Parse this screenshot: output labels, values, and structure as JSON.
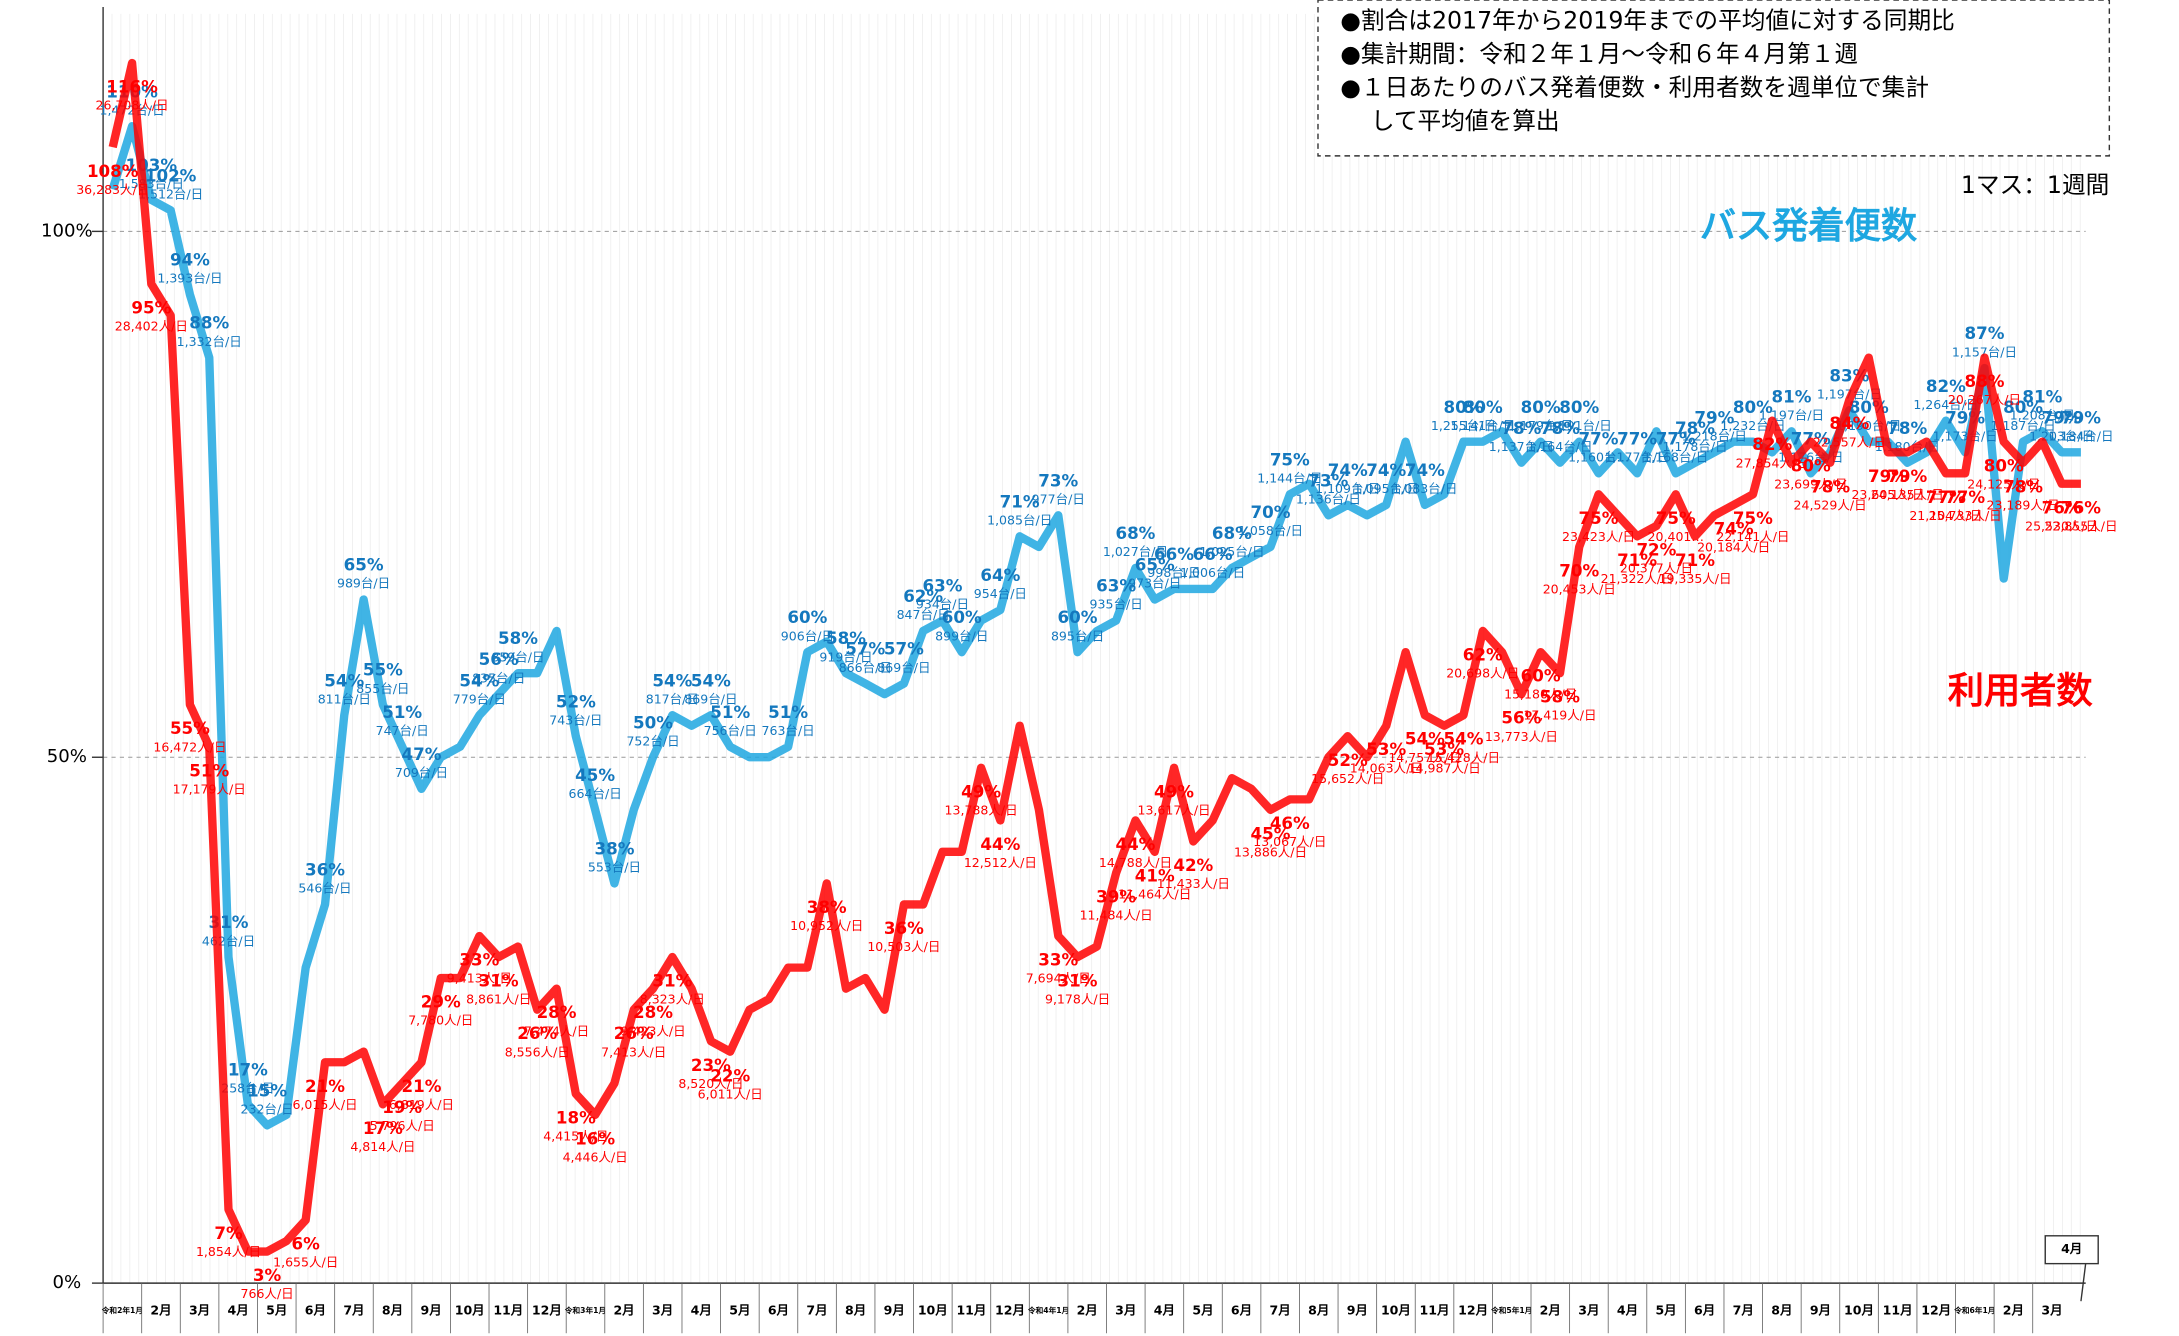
{
  "chart_data": {
    "type": "line",
    "info_box": [
      "●割合は2017年から2019年までの平均値に対する同期比",
      "●集計期間：令和２年１月～令和６年４月第１週",
      "●１日あたりのバス発着便数・利用者数を週単位で集計",
      "して平均値を算出"
    ],
    "scale_note": "1マス：1週間",
    "categories": [
      "令和2年1月",
      null,
      "2月",
      null,
      "3月",
      null,
      "4月",
      null,
      "5月",
      null,
      "6月",
      null,
      "7月",
      null,
      "8月",
      null,
      "9月",
      null,
      "10月",
      null,
      "11月",
      null,
      "12月",
      null,
      "令和3年1月",
      null,
      "2月",
      null,
      "3月",
      null,
      "4月",
      null,
      "5月",
      null,
      "6月",
      null,
      "7月",
      null,
      "8月",
      null,
      "9月",
      null,
      "10月",
      null,
      "11月",
      null,
      "12月",
      null,
      "令和4年1月",
      null,
      "2月",
      null,
      "3月",
      null,
      "4月",
      null,
      "5月",
      null,
      "6月",
      null,
      "7月",
      null,
      "8月",
      null,
      "9月",
      null,
      "10月",
      null,
      "11月",
      null,
      "12月",
      null,
      "令和5年1月",
      null,
      "2月",
      null,
      "3月",
      null,
      "4月",
      null,
      "5月",
      null,
      "6月",
      null,
      "7月",
      null,
      "8月",
      null,
      "9月",
      null,
      "10月",
      null,
      "11月",
      null,
      "12月",
      null,
      "令和6年1月",
      null,
      "2月",
      null,
      "3月",
      null,
      "4月"
    ],
    "ylim": [
      0,
      122
    ],
    "yticks": [
      {
        "value": 0,
        "label": "0%"
      },
      {
        "value": 50,
        "label": "50%"
      },
      {
        "value": 100,
        "label": "100%"
      }
    ],
    "grid": true,
    "series": [
      {
        "name": "バス発着便数",
        "color": "#1ea7e1",
        "label_color": "#1478be",
        "values": [
          104,
          110,
          103,
          102,
          94,
          88,
          31,
          17,
          15,
          16,
          30,
          36,
          54,
          65,
          55,
          51,
          47,
          50,
          51,
          54,
          56,
          58,
          58,
          62,
          52,
          45,
          38,
          45,
          50,
          54,
          53,
          54,
          51,
          50,
          50,
          51,
          60,
          61,
          58,
          57,
          56,
          57,
          62,
          63,
          60,
          63,
          64,
          71,
          70,
          73,
          60,
          62,
          63,
          68,
          65,
          66,
          66,
          66,
          68,
          69,
          70,
          75,
          76,
          73,
          74,
          73,
          74,
          80,
          74,
          75,
          80,
          80,
          81,
          78,
          80,
          78,
          80,
          77,
          79,
          77,
          81,
          77,
          78,
          79,
          80,
          80,
          79,
          81,
          77,
          79,
          83,
          80,
          80,
          78,
          79,
          82,
          79,
          87,
          67,
          80,
          81,
          79,
          79
        ],
        "value_labels": [
          null,
          "110%",
          "103%",
          "102%",
          "94%",
          "88%",
          "31%",
          "17%",
          "15%",
          null,
          null,
          "36%",
          "54%",
          "65%",
          "55%",
          "51%",
          "47%",
          null,
          null,
          "54%",
          "56%",
          "58%",
          null,
          null,
          "52%",
          "45%",
          "38%",
          null,
          "50%",
          "54%",
          null,
          "54%",
          "51%",
          null,
          null,
          "51%",
          "60%",
          null,
          "58%",
          "57%",
          null,
          "57%",
          "62%",
          "63%",
          "60%",
          null,
          "64%",
          "71%",
          null,
          "73%",
          "60%",
          null,
          "63%",
          "68%",
          "65%",
          "66%",
          null,
          "66%",
          "68%",
          null,
          "70%",
          "75%",
          null,
          "73%",
          "74%",
          null,
          "74%",
          null,
          "74%",
          null,
          "80%",
          "80%",
          null,
          "78%",
          "80%",
          "78%",
          "80%",
          "77%",
          null,
          "77%",
          null,
          "77%",
          "78%",
          "79%",
          null,
          "80%",
          null,
          "81%",
          "77%",
          null,
          "83%",
          "80%",
          null,
          "78%",
          null,
          "82%",
          "79%",
          "87%",
          null,
          "80%",
          "81%",
          "79%",
          "79%"
        ],
        "count_labels": [
          null,
          "1,472台/日",
          "1,583台/日",
          "1,512台/日",
          "1,393台/日",
          "1,332台/日",
          "462台/日",
          "258台/日",
          "232台/日",
          null,
          null,
          "546台/日",
          "811台/日",
          "989台/日",
          "855台/日",
          "747台/日",
          "709台/日",
          null,
          null,
          "779台/日",
          "835台/日",
          "859台/日",
          null,
          null,
          "743台/日",
          "664台/日",
          "553台/日",
          null,
          "752台/日",
          "817台/日",
          null,
          "869台/日",
          "756台/日",
          null,
          null,
          "763台/日",
          "906台/日",
          null,
          "919台/日",
          "866台/日",
          null,
          "869台/日",
          "847台/日",
          "934台/日",
          "899台/日",
          null,
          "954台/日",
          "1,085台/日",
          null,
          "977台/日",
          "895台/日",
          null,
          "935台/日",
          "1,027台/日",
          "973台/日",
          "998台/日",
          null,
          "1,006台/日",
          "1,025台/日",
          null,
          "1,058台/日",
          "1,144台/日",
          null,
          "1,136台/日",
          "1,109台/日",
          null,
          "1,095台/日",
          null,
          "1,083台/日",
          null,
          "1,255台/日",
          "1,141台/日",
          null,
          "1,137台/日",
          "1,179台/日",
          "1,164台/日",
          "1,191台/日",
          "1,160台…",
          null,
          "1,177台/日",
          null,
          "1,168台/日",
          "1,178台/日",
          "1,218台/日",
          null,
          "1,232台/日",
          null,
          "1,197台/日",
          "1,176台/日",
          null,
          "1,197台/日",
          "1,190台/日",
          null,
          "1,180台/日",
          null,
          "1,264台/日",
          "1,173台/日",
          "1,157台/日",
          null,
          "1,187台/日",
          "1,208台/日",
          "1,203台/日",
          "1,184台/日"
        ]
      },
      {
        "name": "利用者数",
        "color": "#ff0000",
        "label_color": "#ff0000",
        "values": [
          108,
          116,
          95,
          92,
          55,
          51,
          7,
          3,
          3,
          4,
          6,
          21,
          21,
          22,
          17,
          19,
          21,
          29,
          29,
          33,
          31,
          32,
          26,
          28,
          18,
          16,
          19,
          26,
          28,
          31,
          28,
          23,
          22,
          26,
          27,
          30,
          30,
          38,
          28,
          29,
          26,
          36,
          36,
          41,
          41,
          49,
          44,
          53,
          45,
          33,
          31,
          32,
          39,
          44,
          41,
          49,
          42,
          44,
          48,
          47,
          45,
          46,
          46,
          50,
          52,
          50,
          53,
          60,
          54,
          53,
          54,
          62,
          60,
          56,
          60,
          58,
          70,
          75,
          73,
          71,
          72,
          75,
          71,
          73,
          74,
          75,
          82,
          78,
          80,
          78,
          84,
          88,
          79,
          79,
          80,
          77,
          77,
          88,
          80,
          78,
          80,
          76,
          76
        ],
        "value_labels": [
          "108%",
          "116%",
          "95%",
          null,
          "55%",
          "51%",
          "7%",
          null,
          "3%",
          null,
          "6%",
          "21%",
          null,
          null,
          "17%",
          "19%",
          "21%",
          "29%",
          null,
          "33%",
          "31%",
          null,
          "26%",
          "28%",
          "18%",
          "16%",
          null,
          "26%",
          "28%",
          "31%",
          null,
          "23%",
          "22%",
          null,
          null,
          null,
          null,
          "38%",
          null,
          null,
          null,
          "36%",
          null,
          null,
          null,
          "49%",
          "44%",
          null,
          null,
          "33%",
          "31%",
          null,
          "39%",
          "44%",
          "41%",
          "49%",
          "42%",
          null,
          null,
          null,
          "45%",
          "46%",
          null,
          null,
          "52%",
          null,
          "53%",
          null,
          "54%",
          "53%",
          "54%",
          "62%",
          null,
          "56%",
          "60%",
          "58%",
          "70%",
          "75%",
          null,
          "71%",
          "72%",
          "75%",
          "71%",
          null,
          "74%",
          "75%",
          "82%",
          null,
          "80%",
          "78%",
          "84%",
          null,
          "79%",
          "79%",
          null,
          "77%",
          "77%",
          "88%",
          "80%",
          "78%",
          null,
          "76%",
          "76%"
        ],
        "count_labels": [
          "36,283人/日",
          "26,708人/日",
          "28,402人/日",
          null,
          "16,472人/日",
          "17,179人/日",
          "1,854人/日",
          null,
          "766人/日",
          null,
          "1,655人/日",
          "6,015人/日",
          null,
          null,
          "4,814人/日",
          "5,796人/日",
          "6,819人/日",
          "7,780人/日",
          null,
          "9,413人/日",
          "8,861人/日",
          null,
          "8,556人/日",
          "7,474人/日",
          "4,415人/日",
          "4,446人/日",
          null,
          "7,413人/日",
          "9,423人/日",
          "8,323人/日",
          null,
          "8,520人/日",
          "6,011人/日",
          null,
          null,
          null,
          null,
          "10,952人/日",
          null,
          null,
          null,
          "10,503人/日",
          null,
          null,
          null,
          "13,788人/日",
          "12,512人/日",
          null,
          null,
          "7,694人/日",
          "9,178人/日",
          null,
          "11,484人/日",
          "14,788人/日",
          "11,464人/日",
          "13,617人/日",
          "11,433人/日",
          null,
          null,
          null,
          "13,886人/日",
          "13,067人/日",
          null,
          null,
          "15,652人/日",
          null,
          "14,063人/日",
          null,
          "14,757人/日",
          "14,987人/日",
          "15,428人/日",
          "20,698人/日",
          null,
          "13,773人/日",
          "15,180人/日",
          "17,419人/日",
          "20,453人/日",
          "23,423人/日",
          null,
          "21,322人/日",
          "20,377人/日",
          "20,401…",
          "19,335人/日",
          null,
          "20,184人/日",
          "22,141人/日",
          "27,854人/日",
          null,
          "23,699人/日",
          "24,529人/日",
          "22,557人/日",
          null,
          "23,605人/日",
          "24,135人/日",
          null,
          "21,104人/日",
          "25,733人/日",
          "20,267人/日",
          "24,125人/日",
          "23,189人/日",
          null,
          "25,530人/日",
          "22,855人/日"
        ]
      }
    ]
  }
}
